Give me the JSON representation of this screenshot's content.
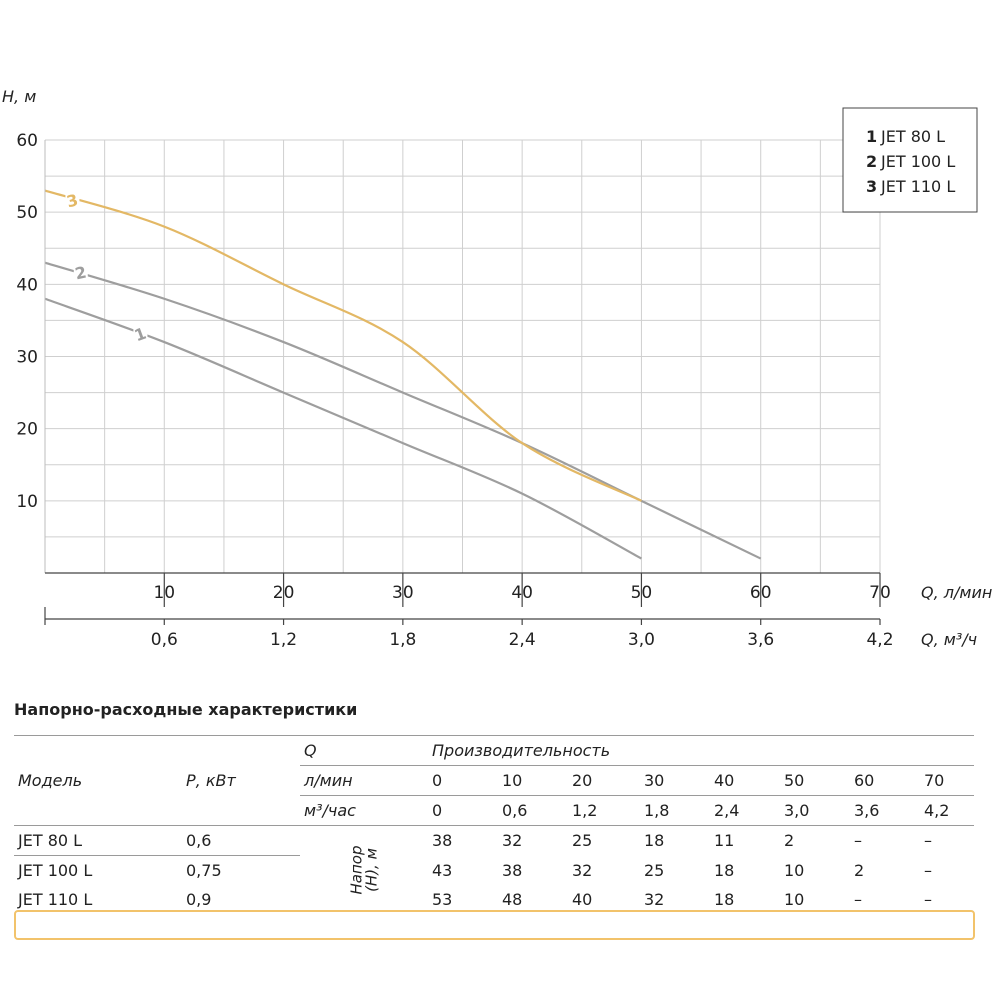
{
  "chart_data": {
    "type": "line",
    "ylabel": "H, м",
    "xlabel": "Q, л/мин",
    "xlabel2": "Q, м³/ч",
    "ylim": [
      0,
      60
    ],
    "xlim": [
      0,
      70
    ],
    "yticks": [
      "10",
      "20",
      "30",
      "40",
      "50",
      "60"
    ],
    "xticks": [
      "10",
      "20",
      "30",
      "40",
      "50",
      "60",
      "70"
    ],
    "xticks2": [
      "0,6",
      "1,2",
      "1,8",
      "2,4",
      "3,0",
      "3,6",
      "4,2"
    ],
    "grid": true,
    "legend_position": "top-right",
    "series": [
      {
        "name": "JET 80 L",
        "number": "1",
        "color": "#9e9e9e",
        "x": [
          0,
          10,
          20,
          30,
          40,
          50
        ],
        "y": [
          38,
          32,
          25,
          18,
          11,
          2
        ]
      },
      {
        "name": "JET 100 L",
        "number": "2",
        "color": "#9e9e9e",
        "x": [
          0,
          10,
          20,
          30,
          40,
          50,
          60
        ],
        "y": [
          43,
          38,
          32,
          25,
          18,
          10,
          2
        ]
      },
      {
        "name": "JET 110 L",
        "number": "3",
        "color": "#e3b865",
        "x": [
          0,
          10,
          20,
          30,
          40,
          50
        ],
        "y": [
          53,
          48,
          40,
          32,
          18,
          10
        ]
      }
    ]
  },
  "table": {
    "title": "Напорно-расходные характеристики",
    "q_label": "Q",
    "productivity_label": "Производительность",
    "model_label": "Модель",
    "power_label": "Р, кВт",
    "lmin_label": "л/мин",
    "m3_label": "м³/час",
    "head_label_1": "Напор",
    "head_label_2": "(Н), м",
    "lmin_values": [
      "0",
      "10",
      "20",
      "30",
      "40",
      "50",
      "60",
      "70"
    ],
    "m3_values": [
      "0",
      "0,6",
      "1,2",
      "1,8",
      "2,4",
      "3,0",
      "3,6",
      "4,2"
    ],
    "rows": [
      {
        "model": "JET 80 L",
        "power": "0,6",
        "values": [
          "38",
          "32",
          "25",
          "18",
          "11",
          "2",
          "–",
          "–"
        ]
      },
      {
        "model": "JET 100 L",
        "power": "0,75",
        "values": [
          "43",
          "38",
          "32",
          "25",
          "18",
          "10",
          "2",
          "–"
        ]
      },
      {
        "model": "JET 110 L",
        "power": "0,9",
        "values": [
          "53",
          "48",
          "40",
          "32",
          "18",
          "10",
          "–",
          "–"
        ]
      }
    ],
    "highlight_color": "#f2c36b"
  }
}
